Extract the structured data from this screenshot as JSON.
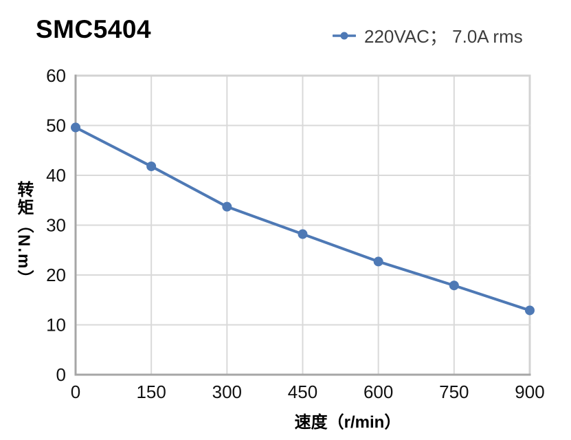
{
  "title": "SMC5404",
  "legend": {
    "label": "220VAC； 7.0A rms",
    "marker": "line-with-dot"
  },
  "chart_data": {
    "type": "line",
    "title": "SMC5404",
    "xlabel": "速度（r/min）",
    "ylabel": "转矩（N.m）",
    "xlim": [
      0,
      900
    ],
    "ylim": [
      0,
      60
    ],
    "x_ticks": [
      0,
      150,
      300,
      450,
      600,
      750,
      900
    ],
    "y_ticks": [
      0,
      10,
      20,
      30,
      40,
      50,
      60
    ],
    "grid": true,
    "legend_position": "top-right",
    "series": [
      {
        "name": "220VAC； 7.0A rms",
        "x": [
          0,
          150,
          300,
          450,
          600,
          750,
          900
        ],
        "values": [
          49.6,
          41.8,
          33.7,
          28.2,
          22.7,
          17.9,
          12.9
        ],
        "color": "#4e79b5",
        "marker": "circle"
      }
    ]
  },
  "colors": {
    "line": "#4e79b5",
    "grid": "#d9d9d9",
    "frame": "#d3d3d3",
    "axis": "#a6a6a6",
    "tick_text": "#111111",
    "legend_text": "#3d3d3d",
    "title_text": "#000000"
  }
}
